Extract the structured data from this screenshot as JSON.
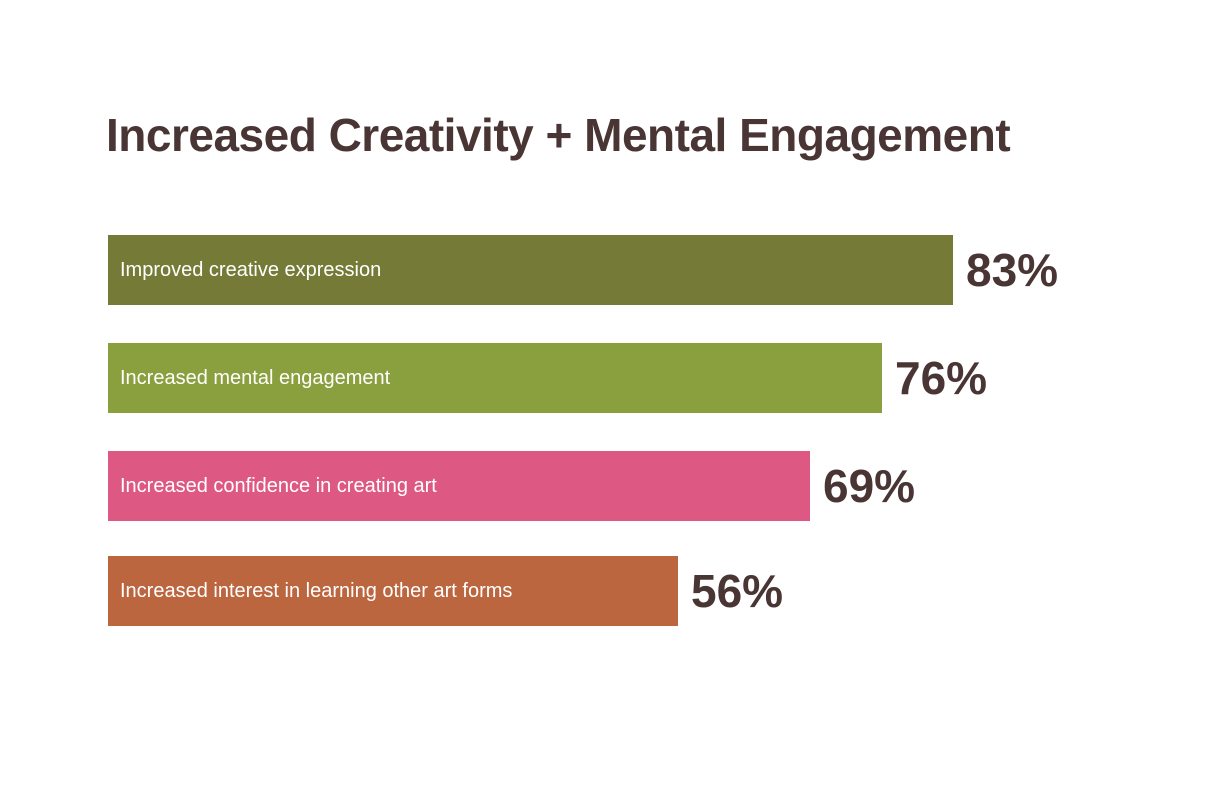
{
  "chart_data": {
    "type": "bar",
    "orientation": "horizontal",
    "title": "Increased Creativity + Mental Engagement",
    "categories": [
      "Improved creative expression",
      "Increased mental engagement",
      "Increased confidence in creating art",
      "Increased interest in learning other art forms"
    ],
    "values": [
      83,
      76,
      69,
      56
    ],
    "value_labels": [
      "83%",
      "76%",
      "69%",
      "56%"
    ],
    "colors": [
      "#757b36",
      "#8a9f3d",
      "#dd5882",
      "#bc663f"
    ],
    "xlim": [
      0,
      100
    ],
    "grid": false,
    "legend": "none"
  }
}
